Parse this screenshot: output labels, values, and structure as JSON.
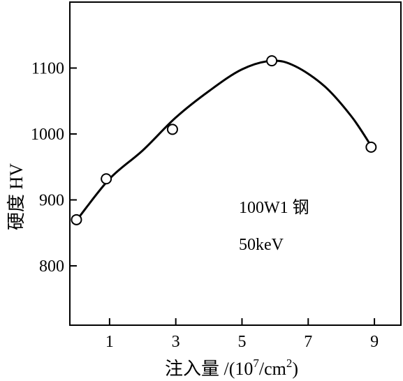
{
  "chart_data": {
    "type": "scatter",
    "xlabel": "注入量 /(10",
    "xlabel_exp1": "7",
    "xlabel_mid": "/cm",
    "xlabel_exp2": "2",
    "xlabel_end": ")",
    "ylabel": "硬度 HV",
    "xlim": [
      -0.2,
      9.8
    ],
    "ylim": [
      710,
      1200
    ],
    "xticks": [
      1,
      3,
      5,
      7,
      9
    ],
    "yticks": [
      800,
      900,
      1000,
      1100
    ],
    "grid": false,
    "legend": "none",
    "annotations": [
      "100W1 钢",
      "50keV"
    ],
    "series": [
      {
        "marker": "open-circle",
        "points": [
          {
            "x": 0,
            "y": 870
          },
          {
            "x": 0.9,
            "y": 932
          },
          {
            "x": 2.9,
            "y": 1007
          },
          {
            "x": 5.9,
            "y": 1111
          },
          {
            "x": 8.9,
            "y": 980
          }
        ]
      }
    ],
    "fit_curve": [
      {
        "x": 0.05,
        "y": 872
      },
      {
        "x": 1.0,
        "y": 932
      },
      {
        "x": 2.0,
        "y": 975
      },
      {
        "x": 3.0,
        "y": 1025
      },
      {
        "x": 4.0,
        "y": 1065
      },
      {
        "x": 5.0,
        "y": 1098
      },
      {
        "x": 5.9,
        "y": 1111
      },
      {
        "x": 6.6,
        "y": 1103
      },
      {
        "x": 7.5,
        "y": 1072
      },
      {
        "x": 8.3,
        "y": 1027
      },
      {
        "x": 8.9,
        "y": 982
      }
    ]
  }
}
